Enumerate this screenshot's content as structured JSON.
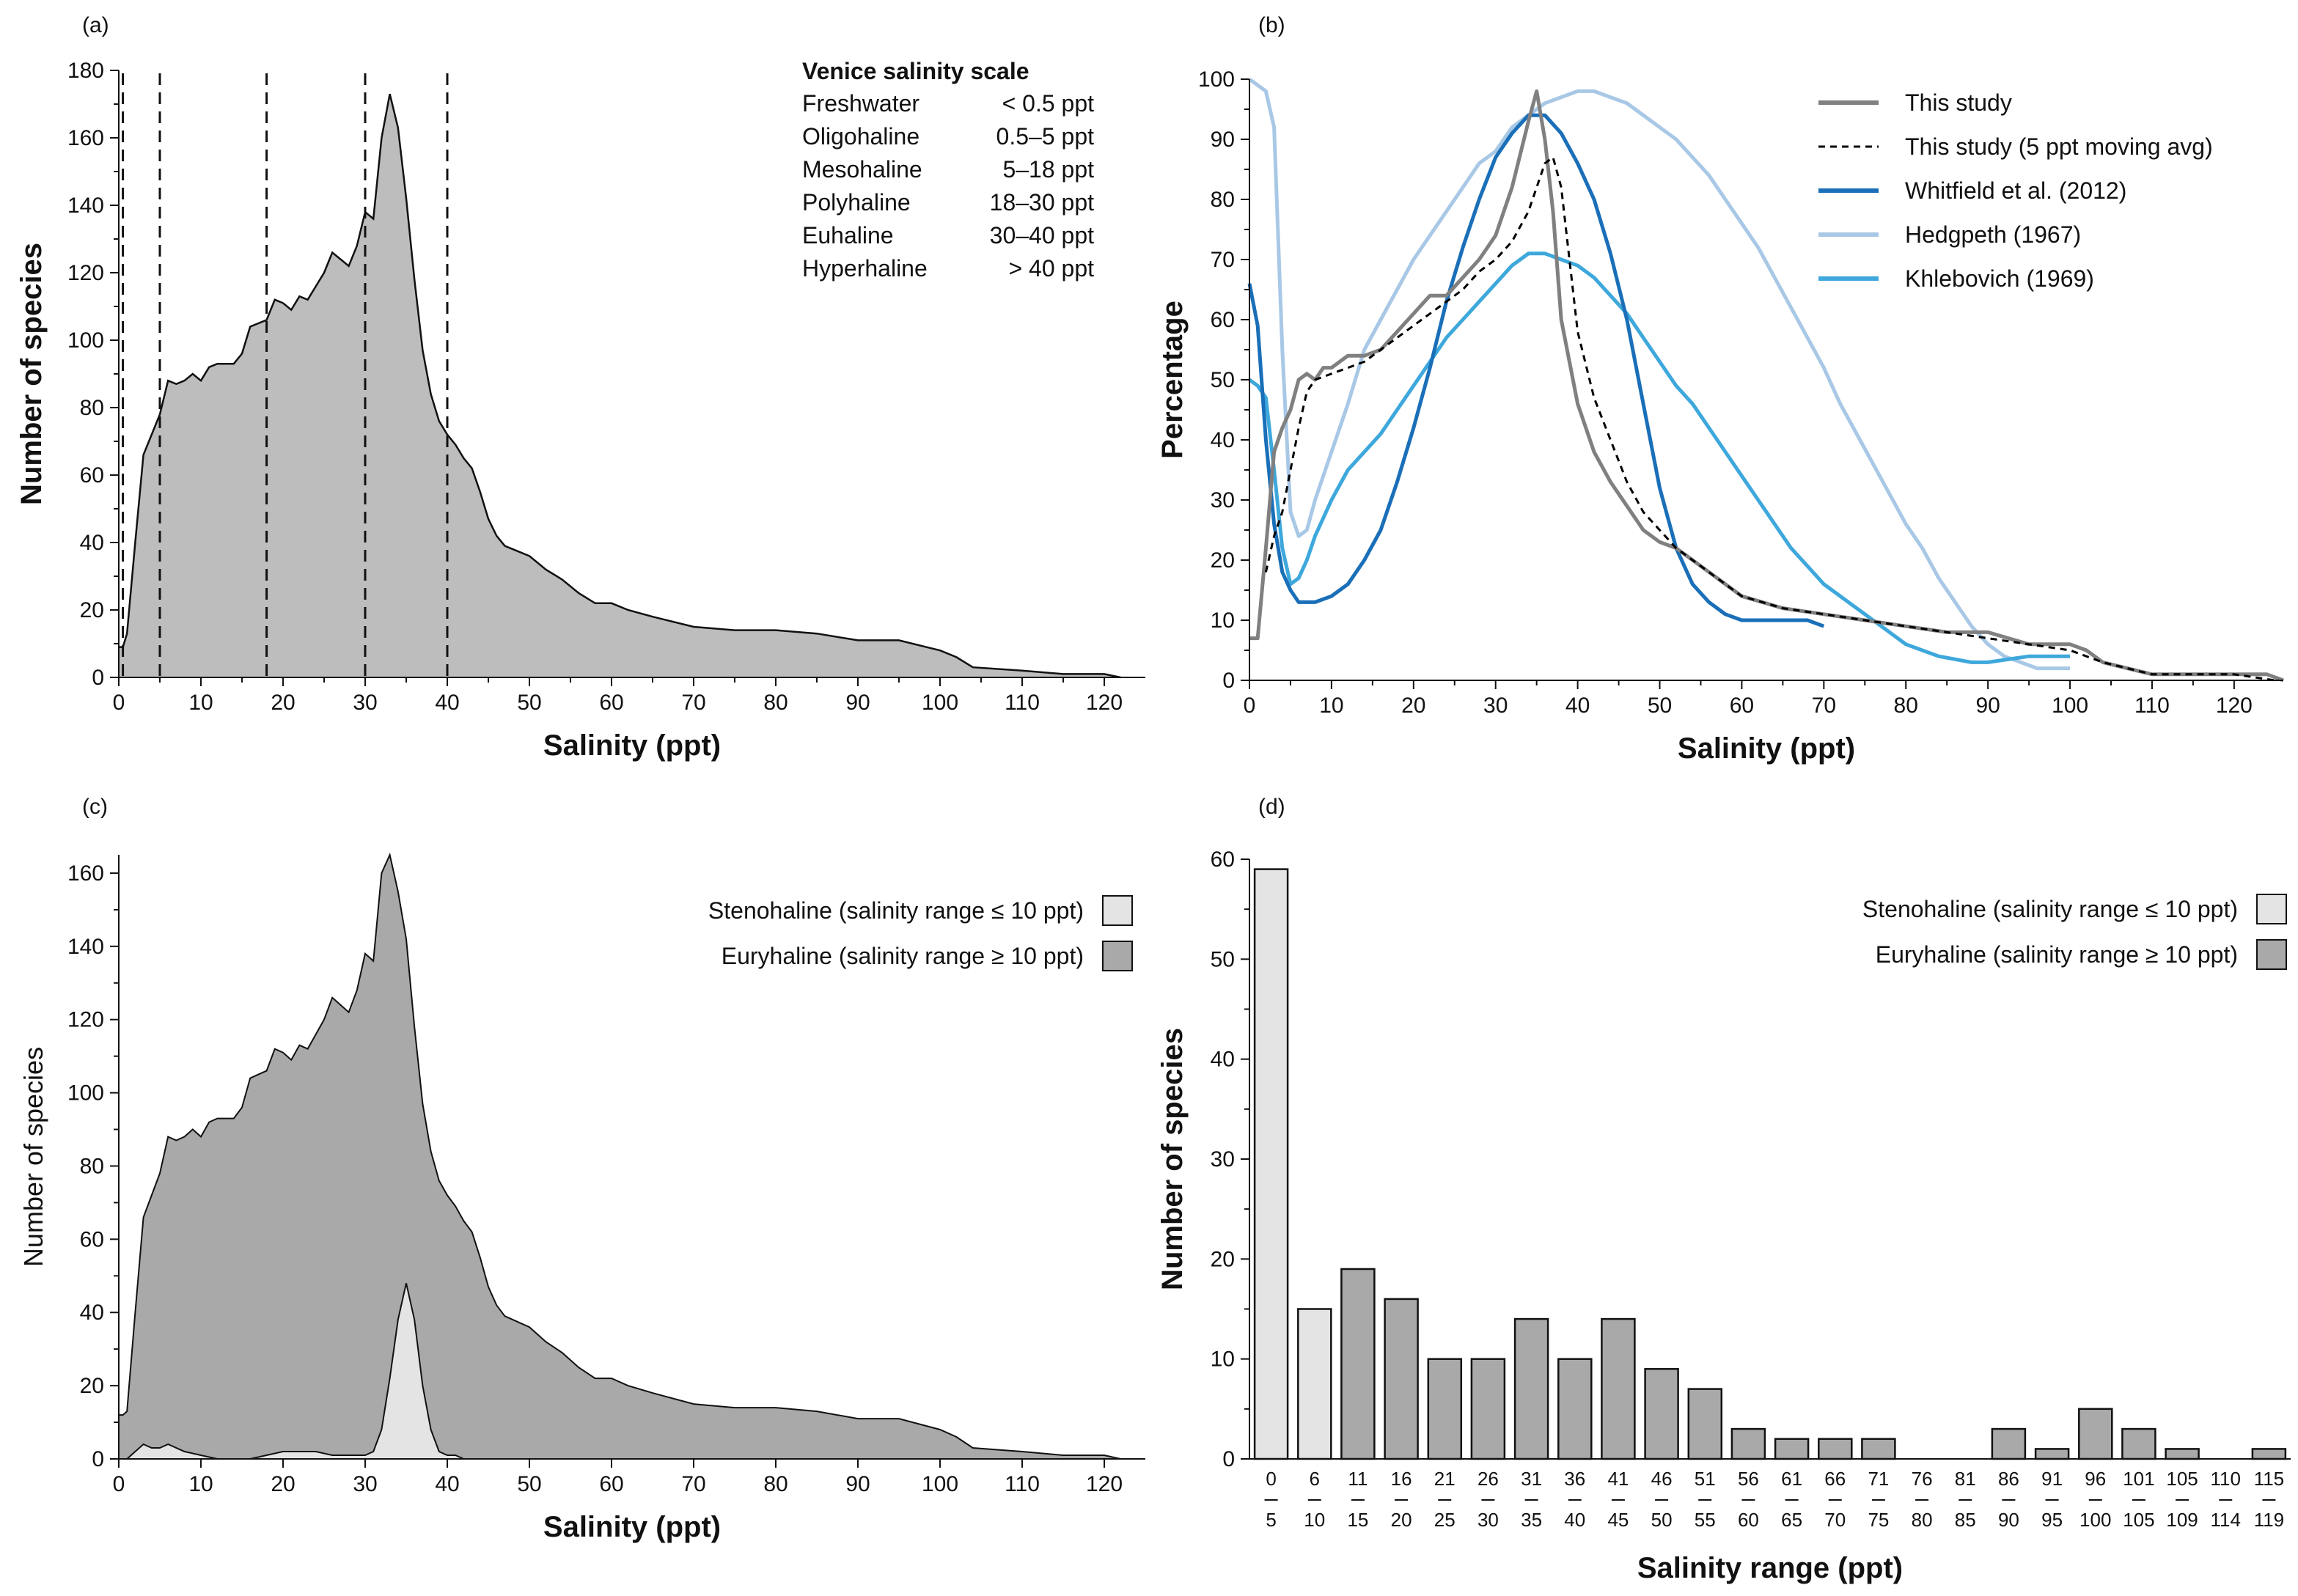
{
  "panels": {
    "a": "(a)",
    "b": "(b)",
    "c": "(c)",
    "d": "(d)"
  },
  "chart_data": [
    {
      "id": "a",
      "type": "area",
      "title": "",
      "xlabel": "Salinity (ppt)",
      "ylabel": "Number of species",
      "xlim": [
        0,
        125
      ],
      "ylim": [
        0,
        180
      ],
      "xticks": [
        0,
        10,
        20,
        30,
        40,
        50,
        60,
        70,
        80,
        90,
        100,
        110,
        120
      ],
      "yticks": [
        0,
        20,
        40,
        60,
        80,
        100,
        120,
        140,
        160,
        180
      ],
      "vlines": [
        0.5,
        5,
        18,
        30,
        40
      ],
      "venice_scale": {
        "title": "Venice salinity scale",
        "rows": [
          {
            "name": "Freshwater",
            "range": "< 0.5 ppt"
          },
          {
            "name": "Oligohaline",
            "range": "0.5–5 ppt"
          },
          {
            "name": "Mesohaline",
            "range": "5–18 ppt"
          },
          {
            "name": "Polyhaline",
            "range": "18–30 ppt"
          },
          {
            "name": "Euhaline",
            "range": "30–40 ppt"
          },
          {
            "name": "Hyperhaline",
            "range": "> 40 ppt"
          }
        ]
      },
      "x": [
        0,
        0.5,
        1,
        2,
        3,
        4,
        5,
        6,
        7,
        8,
        9,
        10,
        11,
        12,
        13,
        14,
        15,
        16,
        17,
        18,
        19,
        20,
        21,
        22,
        23,
        24,
        25,
        26,
        27,
        28,
        29,
        30,
        31,
        32,
        33,
        34,
        35,
        36,
        37,
        38,
        39,
        40,
        41,
        42,
        43,
        44,
        45,
        46,
        47,
        48,
        49,
        50,
        52,
        54,
        56,
        58,
        60,
        62,
        65,
        70,
        75,
        80,
        85,
        90,
        95,
        100,
        102,
        104,
        110,
        115,
        120,
        122,
        122
      ],
      "y": [
        9,
        9,
        13,
        40,
        66,
        72,
        78,
        88,
        87,
        88,
        90,
        88,
        92,
        93,
        93,
        93,
        96,
        104,
        105,
        106,
        112,
        111,
        109,
        113,
        112,
        116,
        120,
        126,
        124,
        122,
        128,
        138,
        136,
        160,
        173,
        163,
        142,
        118,
        97,
        84,
        76,
        72,
        69,
        65,
        62,
        55,
        47,
        42,
        39,
        38,
        37,
        36,
        32,
        29,
        25,
        22,
        22,
        20,
        18,
        15,
        14,
        14,
        13,
        11,
        11,
        8,
        6,
        3,
        2,
        1,
        1,
        0,
        0
      ]
    },
    {
      "id": "b",
      "type": "line",
      "xlabel": "Salinity (ppt)",
      "ylabel": "Percentage",
      "xlim": [
        0,
        126
      ],
      "ylim": [
        0,
        100
      ],
      "xticks": [
        0,
        10,
        20,
        30,
        40,
        50,
        60,
        70,
        80,
        90,
        100,
        110,
        120
      ],
      "yticks": [
        0,
        10,
        20,
        30,
        40,
        50,
        60,
        70,
        80,
        90,
        100
      ],
      "series": [
        {
          "name": "This study",
          "color": "#808080",
          "dash": "solid",
          "x": [
            0,
            1,
            2,
            3,
            4,
            5,
            6,
            7,
            8,
            9,
            10,
            12,
            14,
            16,
            18,
            20,
            22,
            24,
            26,
            28,
            30,
            32,
            34,
            35,
            36,
            37,
            38,
            40,
            42,
            44,
            46,
            48,
            50,
            52,
            54,
            56,
            58,
            60,
            65,
            70,
            75,
            80,
            85,
            90,
            95,
            100,
            102,
            104,
            110,
            115,
            120,
            124,
            126
          ],
          "y": [
            7,
            7,
            22,
            38,
            42,
            45,
            50,
            51,
            50,
            52,
            52,
            54,
            54,
            55,
            58,
            61,
            64,
            64,
            67,
            70,
            74,
            82,
            93,
            98,
            90,
            78,
            60,
            46,
            38,
            33,
            29,
            25,
            23,
            22,
            20,
            18,
            16,
            14,
            12,
            11,
            10,
            9,
            8,
            8,
            6,
            6,
            5,
            3,
            1,
            1,
            1,
            1,
            0
          ]
        },
        {
          "name": "This study (5 ppt moving avg)",
          "color": "#000000",
          "dash": "dashed",
          "x": [
            2,
            3,
            4,
            5,
            6,
            7,
            8,
            10,
            12,
            14,
            16,
            18,
            20,
            22,
            24,
            26,
            28,
            30,
            32,
            34,
            36,
            37,
            38,
            39,
            40,
            42,
            44,
            46,
            48,
            50,
            52,
            54,
            56,
            58,
            60,
            65,
            70,
            75,
            80,
            85,
            90,
            95,
            100,
            104,
            110,
            115,
            120,
            125
          ],
          "y": [
            18,
            24,
            28,
            35,
            42,
            48,
            50,
            51,
            52,
            53,
            55,
            57,
            59,
            61,
            63,
            65,
            68,
            70,
            73,
            78,
            86,
            87,
            82,
            70,
            58,
            47,
            40,
            33,
            28,
            25,
            22,
            20,
            18,
            16,
            14,
            12,
            11,
            10,
            9,
            8,
            7,
            6,
            5,
            3,
            1,
            1,
            1,
            0
          ]
        },
        {
          "name": "Whitfield et al. (2012)",
          "color": "#1a6fb8",
          "dash": "solid",
          "x": [
            0,
            1,
            2,
            3,
            4,
            5,
            6,
            7,
            8,
            10,
            12,
            14,
            16,
            18,
            20,
            22,
            24,
            26,
            28,
            30,
            32,
            34,
            36,
            38,
            40,
            42,
            44,
            46,
            48,
            50,
            52,
            54,
            56,
            58,
            60,
            62,
            64,
            66,
            68,
            70
          ],
          "y": [
            66,
            59,
            40,
            26,
            18,
            15,
            13,
            13,
            13,
            14,
            16,
            20,
            25,
            33,
            42,
            52,
            63,
            72,
            80,
            87,
            91,
            94,
            94,
            91,
            86,
            80,
            71,
            60,
            46,
            32,
            22,
            16,
            13,
            11,
            10,
            10,
            10,
            10,
            10,
            9
          ]
        },
        {
          "name": "Hedgpeth (1967)",
          "color": "#a8c8e6",
          "dash": "solid",
          "x": [
            0,
            1,
            2,
            3,
            4,
            5,
            6,
            7,
            8,
            10,
            12,
            14,
            16,
            18,
            20,
            22,
            24,
            26,
            28,
            30,
            32,
            34,
            36,
            38,
            40,
            42,
            44,
            46,
            48,
            50,
            52,
            54,
            56,
            58,
            60,
            62,
            64,
            66,
            68,
            70,
            72,
            74,
            76,
            78,
            80,
            82,
            84,
            86,
            88,
            90,
            92,
            94,
            96,
            98,
            100
          ],
          "y": [
            100,
            99,
            98,
            92,
            55,
            28,
            24,
            25,
            30,
            38,
            46,
            55,
            60,
            65,
            70,
            74,
            78,
            82,
            86,
            88,
            92,
            94,
            96,
            97,
            98,
            98,
            97,
            96,
            94,
            92,
            90,
            87,
            84,
            80,
            76,
            72,
            67,
            62,
            57,
            52,
            46,
            41,
            36,
            31,
            26,
            22,
            17,
            13,
            9,
            6,
            4,
            3,
            2,
            2,
            2
          ]
        },
        {
          "name": "Khlebovich (1969)",
          "color": "#3ea8dc",
          "dash": "solid",
          "x": [
            0,
            1,
            2,
            3,
            4,
            5,
            6,
            7,
            8,
            10,
            12,
            14,
            16,
            18,
            20,
            22,
            24,
            26,
            28,
            30,
            32,
            34,
            36,
            38,
            40,
            42,
            44,
            46,
            48,
            50,
            52,
            54,
            56,
            58,
            60,
            62,
            64,
            66,
            68,
            70,
            72,
            74,
            76,
            78,
            80,
            84,
            88,
            90,
            95,
            100
          ],
          "y": [
            50,
            49,
            47,
            35,
            22,
            16,
            17,
            20,
            24,
            30,
            35,
            38,
            41,
            45,
            49,
            53,
            57,
            60,
            63,
            66,
            69,
            71,
            71,
            70,
            69,
            67,
            64,
            61,
            57,
            53,
            49,
            46,
            42,
            38,
            34,
            30,
            26,
            22,
            19,
            16,
            14,
            12,
            10,
            8,
            6,
            4,
            3,
            3,
            4,
            4
          ]
        }
      ]
    },
    {
      "id": "c",
      "type": "area",
      "xlabel": "Salinity (ppt)",
      "ylabel": "Number of species",
      "xlim": [
        0,
        125
      ],
      "ylim": [
        0,
        165
      ],
      "xticks": [
        0,
        10,
        20,
        30,
        40,
        50,
        60,
        70,
        80,
        90,
        100,
        110,
        120
      ],
      "yticks": [
        0,
        20,
        40,
        60,
        80,
        100,
        120,
        140,
        160
      ],
      "series": [
        {
          "name": "Stenohaline (salinity range ≤ 10 ppt)",
          "color": "#e4e4e4",
          "x": [
            0,
            1,
            2,
            3,
            4,
            5,
            6,
            8,
            10,
            12,
            14,
            16,
            18,
            20,
            22,
            24,
            26,
            28,
            30,
            31,
            32,
            33,
            34,
            35,
            36,
            37,
            38,
            39,
            40,
            41,
            42,
            43,
            44,
            125
          ],
          "y": [
            0,
            0,
            2,
            4,
            3,
            3,
            4,
            2,
            1,
            0,
            0,
            0,
            1,
            2,
            2,
            2,
            1,
            1,
            1,
            2,
            8,
            22,
            38,
            48,
            38,
            20,
            8,
            2,
            1,
            1,
            0,
            0,
            0,
            0
          ]
        },
        {
          "name": "Euryhaline (salinity range ≥ 10 ppt)",
          "color": "#a9a9a9",
          "x": [
            0,
            0.5,
            1,
            2,
            3,
            4,
            5,
            6,
            7,
            8,
            9,
            10,
            11,
            12,
            13,
            14,
            15,
            16,
            17,
            18,
            19,
            20,
            21,
            22,
            23,
            24,
            25,
            26,
            27,
            28,
            29,
            30,
            31,
            32,
            33,
            34,
            35,
            36,
            37,
            38,
            39,
            40,
            41,
            42,
            43,
            44,
            45,
            46,
            47,
            48,
            49,
            50,
            52,
            54,
            56,
            58,
            60,
            62,
            65,
            70,
            75,
            80,
            85,
            90,
            95,
            100,
            102,
            104,
            110,
            115,
            120,
            122,
            122
          ],
          "y": [
            12,
            12,
            13,
            40,
            66,
            72,
            78,
            88,
            87,
            88,
            90,
            88,
            92,
            93,
            93,
            93,
            96,
            104,
            105,
            106,
            112,
            111,
            109,
            113,
            112,
            116,
            120,
            126,
            124,
            122,
            128,
            138,
            136,
            160,
            165,
            155,
            142,
            118,
            97,
            84,
            76,
            72,
            69,
            65,
            62,
            55,
            47,
            42,
            39,
            38,
            37,
            36,
            32,
            29,
            25,
            22,
            22,
            20,
            18,
            15,
            14,
            14,
            13,
            11,
            11,
            8,
            6,
            3,
            2,
            1,
            1,
            0,
            0
          ]
        }
      ]
    },
    {
      "id": "d",
      "type": "bar",
      "xlabel": "Salinity range (ppt)",
      "ylabel": "Number of species",
      "ylim": [
        0,
        60
      ],
      "yticks": [
        0,
        10,
        20,
        30,
        40,
        50,
        60
      ],
      "categories": [
        [
          "0",
          "5"
        ],
        [
          "6",
          "10"
        ],
        [
          "11",
          "15"
        ],
        [
          "16",
          "20"
        ],
        [
          "21",
          "25"
        ],
        [
          "26",
          "30"
        ],
        [
          "31",
          "35"
        ],
        [
          "36",
          "40"
        ],
        [
          "41",
          "45"
        ],
        [
          "46",
          "50"
        ],
        [
          "51",
          "55"
        ],
        [
          "56",
          "60"
        ],
        [
          "61",
          "65"
        ],
        [
          "66",
          "70"
        ],
        [
          "71",
          "75"
        ],
        [
          "76",
          "80"
        ],
        [
          "81",
          "85"
        ],
        [
          "86",
          "90"
        ],
        [
          "91",
          "95"
        ],
        [
          "96",
          "100"
        ],
        [
          "101",
          "105"
        ],
        [
          "105",
          "109"
        ],
        [
          "110",
          "114"
        ],
        [
          "115",
          "119"
        ]
      ],
      "values": [
        59,
        15,
        19,
        16,
        10,
        10,
        14,
        10,
        14,
        9,
        7,
        3,
        2,
        2,
        2,
        0,
        0,
        3,
        1,
        5,
        3,
        1,
        0,
        1
      ],
      "categories_type": [
        "steno",
        "steno",
        "eury",
        "eury",
        "eury",
        "eury",
        "eury",
        "eury",
        "eury",
        "eury",
        "eury",
        "eury",
        "eury",
        "eury",
        "eury",
        "eury",
        "eury",
        "eury",
        "eury",
        "eury",
        "eury",
        "eury",
        "eury",
        "eury"
      ],
      "series": [
        {
          "name": "Stenohaline (salinity range ≤ 10 ppt)",
          "color": "#e4e4e4"
        },
        {
          "name": "Euryhaline (salinity range ≥ 10 ppt)",
          "color": "#a9a9a9"
        }
      ]
    }
  ]
}
